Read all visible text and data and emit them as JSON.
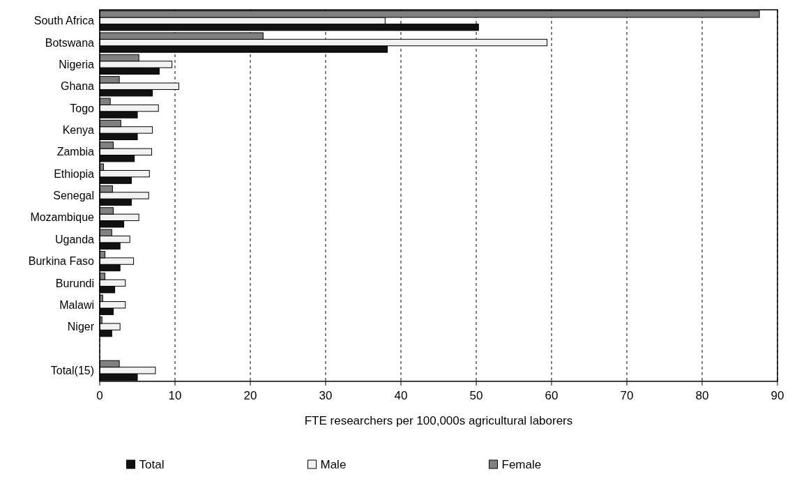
{
  "chart_data": {
    "type": "bar",
    "orientation": "horizontal",
    "xlabel": "FTE researchers per 100,000s agricultural laborers",
    "categories": [
      "South Africa",
      "Botswana",
      "Nigeria",
      "Ghana",
      "Togo",
      "Kenya",
      "Zambia",
      "Ethiopia",
      "Senegal",
      "Mozambique",
      "Uganda",
      "Burkina Faso",
      "Burundi",
      "Malawi",
      "Niger",
      null,
      "Total(15)"
    ],
    "series": [
      {
        "name": "Total",
        "color": "#111111",
        "values": [
          50.3,
          38.2,
          7.9,
          7,
          5,
          5,
          4.6,
          4.2,
          4.2,
          3.2,
          2.7,
          2.7,
          2,
          1.8,
          1.6,
          null,
          5
        ]
      },
      {
        "name": "Male",
        "color": "#f2f2f2",
        "values": [
          37.9,
          59.4,
          9.6,
          10.5,
          7.8,
          7,
          6.9,
          6.6,
          6.5,
          5.2,
          4,
          4.5,
          3.4,
          3.4,
          2.7,
          null,
          7.4
        ]
      },
      {
        "name": "Female",
        "color": "#808080",
        "values": [
          87.6,
          21.7,
          5.2,
          2.6,
          1.4,
          2.8,
          1.8,
          0.5,
          1.7,
          1.8,
          1.6,
          0.7,
          0.7,
          0.4,
          0.3,
          null,
          2.6
        ]
      }
    ],
    "xlim": [
      0,
      90
    ],
    "xticks": [
      0,
      10,
      20,
      30,
      40,
      50,
      60,
      70,
      80,
      90
    ],
    "grid": "x",
    "legend": "bottom"
  }
}
